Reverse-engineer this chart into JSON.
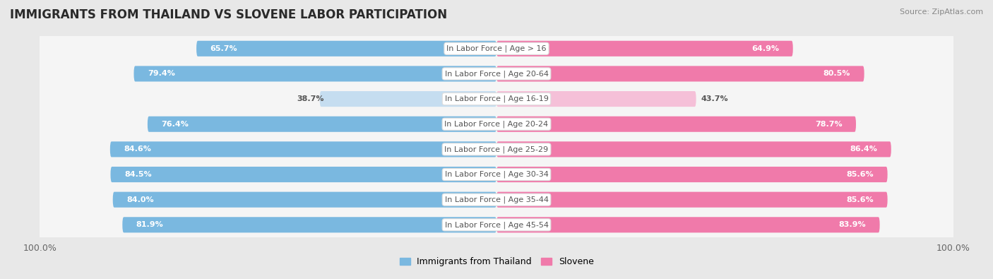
{
  "title": "IMMIGRANTS FROM THAILAND VS SLOVENE LABOR PARTICIPATION",
  "source": "Source: ZipAtlas.com",
  "categories": [
    "In Labor Force | Age > 16",
    "In Labor Force | Age 20-64",
    "In Labor Force | Age 16-19",
    "In Labor Force | Age 20-24",
    "In Labor Force | Age 25-29",
    "In Labor Force | Age 30-34",
    "In Labor Force | Age 35-44",
    "In Labor Force | Age 45-54"
  ],
  "thailand_values": [
    65.7,
    79.4,
    38.7,
    76.4,
    84.6,
    84.5,
    84.0,
    81.9
  ],
  "slovene_values": [
    64.9,
    80.5,
    43.7,
    78.7,
    86.4,
    85.6,
    85.6,
    83.9
  ],
  "thailand_color": "#7ab8e0",
  "thailand_light_color": "#c5ddf0",
  "slovene_color": "#f07aaa",
  "slovene_light_color": "#f5c0d8",
  "bar_height": 0.62,
  "background_color": "#e8e8e8",
  "row_light_color": "#f5f5f5",
  "row_dark_color": "#e0e0e0",
  "max_value": 100.0,
  "title_fontsize": 12,
  "label_fontsize": 8,
  "tick_fontsize": 9,
  "legend_fontsize": 9
}
